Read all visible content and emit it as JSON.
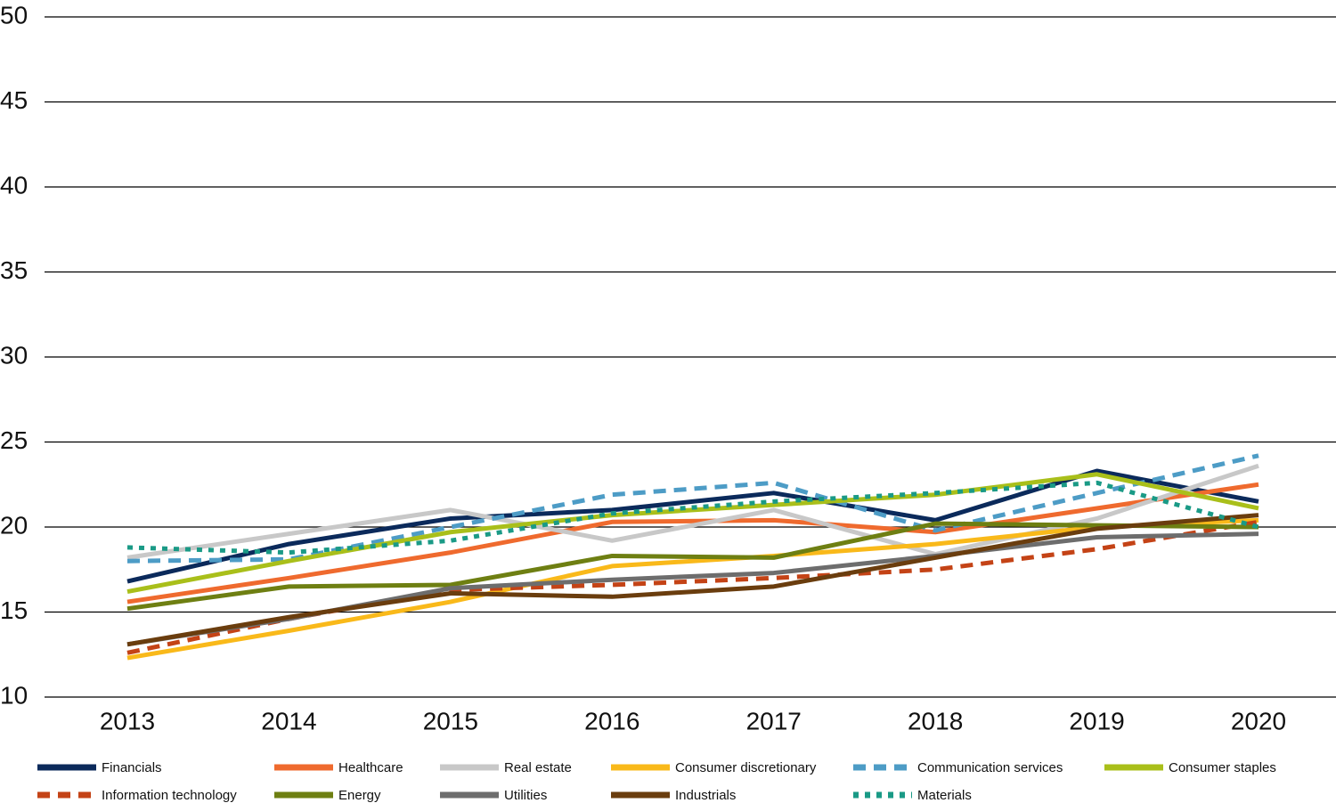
{
  "chart_data": {
    "type": "line",
    "categories": [
      "2013",
      "2014",
      "2015",
      "2016",
      "2017",
      "2018",
      "2019",
      "2020"
    ],
    "series": [
      {
        "name": "Financials",
        "color": "#0b2a5b",
        "values": [
          16.8,
          19,
          20.5,
          21,
          22,
          20.4,
          23.3,
          21.5
        ]
      },
      {
        "name": "Healthcare",
        "color": "#ef6a2e",
        "values": [
          15.6,
          17,
          18.5,
          20.3,
          20.4,
          19.7,
          21.1,
          22.5
        ]
      },
      {
        "name": "Real estate",
        "color": "#c8c8c8",
        "values": [
          18.2,
          19.6,
          21,
          19.2,
          21,
          18.4,
          20.5,
          23.6
        ]
      },
      {
        "name": "Consumer discretionary",
        "color": "#f9b91a",
        "values": [
          12.3,
          13.9,
          15.6,
          17.7,
          18.3,
          19,
          20,
          20.4
        ]
      },
      {
        "name": "Communication services",
        "color": "#4d9cc6",
        "dash": "dashed",
        "values": [
          18,
          18.1,
          20,
          21.9,
          22.6,
          19.8,
          22,
          24.2
        ]
      },
      {
        "name": "Consumer staples",
        "color": "#a9bf1a",
        "values": [
          16.2,
          18,
          19.7,
          20.7,
          21.3,
          21.9,
          23.1,
          21.1
        ]
      },
      {
        "name": "Information technology",
        "color": "#c44316",
        "dash": "dashed",
        "values": [
          12.6,
          14.6,
          16.3,
          16.6,
          17,
          17.5,
          18.7,
          20.3
        ]
      },
      {
        "name": "Energy",
        "color": "#6e7f12",
        "values": [
          15.2,
          16.5,
          16.6,
          18.3,
          18.2,
          20.2,
          20.1,
          20
        ]
      },
      {
        "name": "Utilities",
        "color": "#6d6d6d",
        "values": [
          13.1,
          14.6,
          16.4,
          16.9,
          17.3,
          18.3,
          19.4,
          19.6
        ]
      },
      {
        "name": "Industrials",
        "color": "#6a3d0e",
        "values": [
          13.1,
          14.7,
          16.1,
          15.9,
          16.5,
          18.2,
          19.9,
          20.7
        ]
      },
      {
        "name": "Materials",
        "color": "#1a9a86",
        "dash": "dotted",
        "values": [
          18.8,
          18.5,
          19.2,
          20.8,
          21.5,
          22,
          22.6,
          20
        ]
      }
    ],
    "ylim": [
      10,
      50
    ],
    "yticks": [
      10,
      15,
      20,
      25,
      30,
      35,
      40,
      45,
      50
    ],
    "grid": true,
    "legend": "bottom"
  }
}
